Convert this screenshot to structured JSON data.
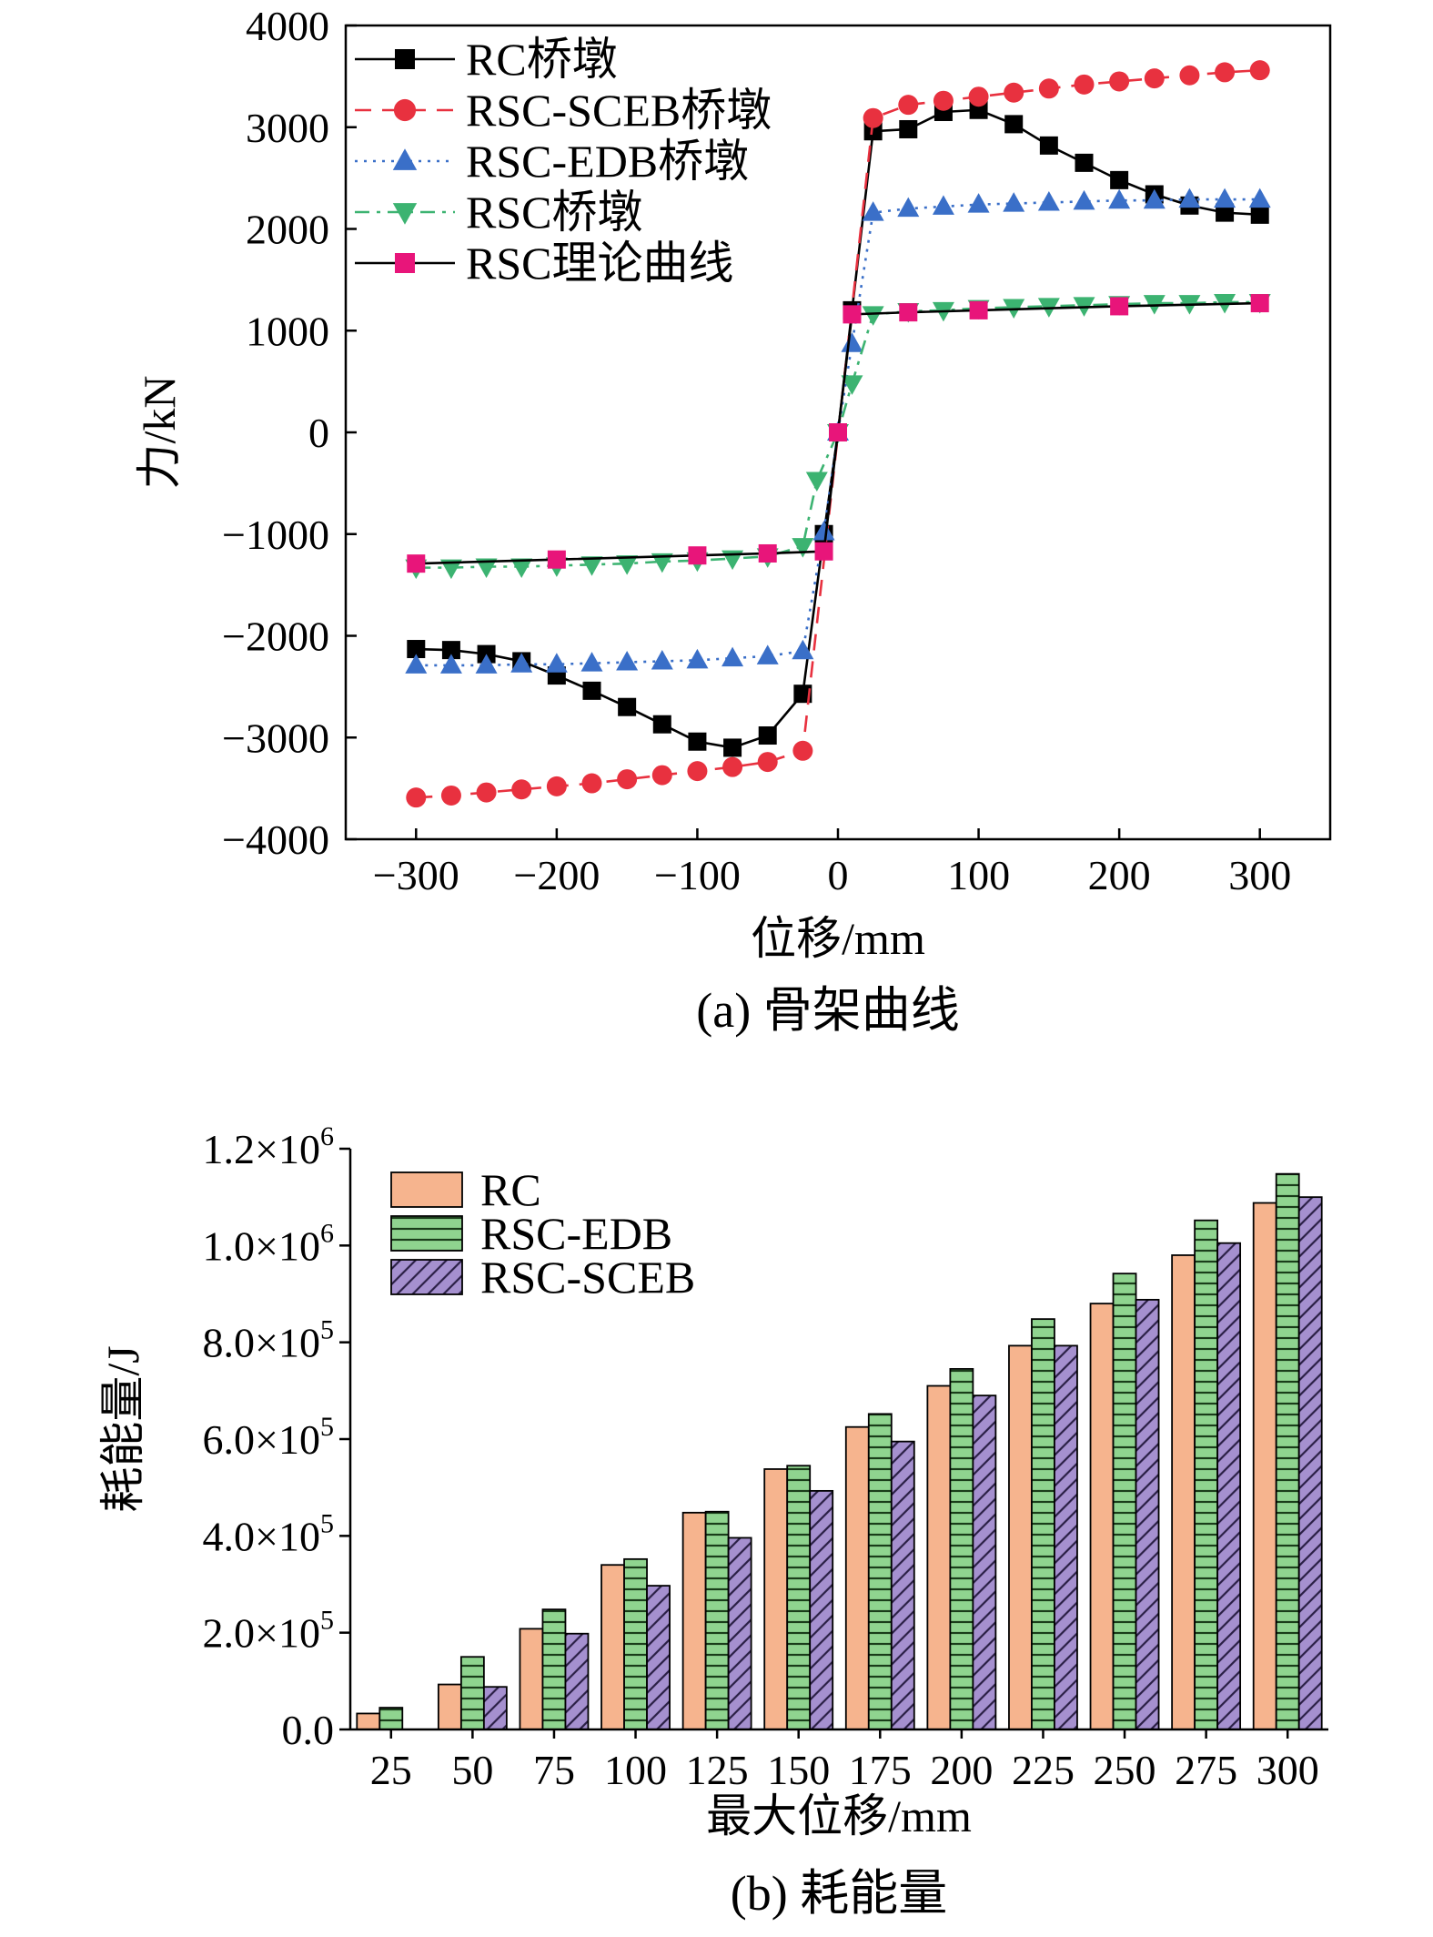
{
  "chart_data": [
    {
      "type": "line",
      "caption": "(a) 骨架曲线",
      "xlabel": "位移/mm",
      "ylabel": "力/kN",
      "xlim": [
        -350,
        350
      ],
      "ylim": [
        -4000,
        4000
      ],
      "xticks": [
        -300,
        -200,
        -100,
        0,
        100,
        200,
        300
      ],
      "xtick_labels": [
        "−300",
        "−200",
        "−100",
        "0",
        "100",
        "200",
        "300"
      ],
      "yticks": [
        -4000,
        -3000,
        -2000,
        -1000,
        0,
        1000,
        2000,
        3000,
        4000
      ],
      "ytick_labels": [
        "−4000",
        "−3000",
        "−2000",
        "−1000",
        "0",
        "1000",
        "2000",
        "3000",
        "4000"
      ],
      "grid": false,
      "legend": "top-left",
      "series": [
        {
          "name": "RC桥墩",
          "color": "#000000",
          "marker": "square",
          "line": "solid",
          "points": [
            [
              -300,
              -2130
            ],
            [
              -275,
              -2140
            ],
            [
              -250,
              -2180
            ],
            [
              -225,
              -2250
            ],
            [
              -200,
              -2390
            ],
            [
              -175,
              -2540
            ],
            [
              -150,
              -2700
            ],
            [
              -125,
              -2870
            ],
            [
              -100,
              -3040
            ],
            [
              -75,
              -3100
            ],
            [
              -50,
              -2980
            ],
            [
              -25,
              -2570
            ],
            [
              -10,
              -1000
            ],
            [
              0,
              0
            ],
            [
              10,
              1200
            ],
            [
              25,
              2960
            ],
            [
              50,
              2980
            ],
            [
              75,
              3150
            ],
            [
              100,
              3170
            ],
            [
              125,
              3030
            ],
            [
              150,
              2820
            ],
            [
              175,
              2650
            ],
            [
              200,
              2480
            ],
            [
              225,
              2340
            ],
            [
              250,
              2230
            ],
            [
              275,
              2160
            ],
            [
              300,
              2140
            ]
          ]
        },
        {
          "name": "RSC-SCEB桥墩",
          "color": "#e8313f",
          "marker": "circle",
          "line": "dashed",
          "points": [
            [
              -300,
              -3590
            ],
            [
              -275,
              -3570
            ],
            [
              -250,
              -3540
            ],
            [
              -225,
              -3510
            ],
            [
              -200,
              -3480
            ],
            [
              -175,
              -3450
            ],
            [
              -150,
              -3410
            ],
            [
              -125,
              -3370
            ],
            [
              -100,
              -3330
            ],
            [
              -75,
              -3290
            ],
            [
              -50,
              -3240
            ],
            [
              -25,
              -3130
            ],
            [
              25,
              3090
            ],
            [
              50,
              3220
            ],
            [
              75,
              3260
            ],
            [
              100,
              3300
            ],
            [
              125,
              3340
            ],
            [
              150,
              3380
            ],
            [
              175,
              3420
            ],
            [
              200,
              3450
            ],
            [
              225,
              3480
            ],
            [
              250,
              3510
            ],
            [
              275,
              3540
            ],
            [
              300,
              3560
            ]
          ]
        },
        {
          "name": "RSC-EDB桥墩",
          "color": "#3a6fc8",
          "marker": "triangle-up",
          "line": "dotted",
          "points": [
            [
              -300,
              -2290
            ],
            [
              -275,
              -2290
            ],
            [
              -250,
              -2290
            ],
            [
              -225,
              -2280
            ],
            [
              -200,
              -2280
            ],
            [
              -175,
              -2270
            ],
            [
              -150,
              -2260
            ],
            [
              -125,
              -2250
            ],
            [
              -100,
              -2240
            ],
            [
              -75,
              -2220
            ],
            [
              -50,
              -2200
            ],
            [
              -25,
              -2150
            ],
            [
              -10,
              -980
            ],
            [
              0,
              0
            ],
            [
              10,
              870
            ],
            [
              25,
              2160
            ],
            [
              50,
              2200
            ],
            [
              75,
              2220
            ],
            [
              100,
              2240
            ],
            [
              125,
              2250
            ],
            [
              150,
              2260
            ],
            [
              175,
              2270
            ],
            [
              200,
              2280
            ],
            [
              225,
              2280
            ],
            [
              250,
              2290
            ],
            [
              275,
              2290
            ],
            [
              300,
              2290
            ]
          ]
        },
        {
          "name": "RSC桥墩",
          "color": "#3cb371",
          "marker": "triangle-down",
          "line": "dashdot",
          "points": [
            [
              -300,
              -1330
            ],
            [
              -275,
              -1330
            ],
            [
              -250,
              -1320
            ],
            [
              -225,
              -1320
            ],
            [
              -200,
              -1310
            ],
            [
              -175,
              -1300
            ],
            [
              -150,
              -1290
            ],
            [
              -125,
              -1270
            ],
            [
              -100,
              -1260
            ],
            [
              -75,
              -1240
            ],
            [
              -50,
              -1220
            ],
            [
              -25,
              -1120
            ],
            [
              -15,
              -470
            ],
            [
              0,
              0
            ],
            [
              10,
              480
            ],
            [
              25,
              1160
            ],
            [
              50,
              1190
            ],
            [
              75,
              1200
            ],
            [
              100,
              1220
            ],
            [
              125,
              1230
            ],
            [
              150,
              1240
            ],
            [
              175,
              1250
            ],
            [
              200,
              1260
            ],
            [
              225,
              1270
            ],
            [
              250,
              1270
            ],
            [
              275,
              1280
            ],
            [
              300,
              1280
            ]
          ]
        },
        {
          "name": "RSC理论曲线",
          "color": "#e8157a",
          "marker": "square",
          "line": "solid",
          "line_color": "#000000",
          "points": [
            [
              -300,
              -1290
            ],
            [
              -200,
              -1250
            ],
            [
              -100,
              -1210
            ],
            [
              -50,
              -1190
            ],
            [
              -10,
              -1170
            ],
            [
              0,
              0
            ],
            [
              10,
              1160
            ],
            [
              50,
              1180
            ],
            [
              100,
              1200
            ],
            [
              200,
              1240
            ],
            [
              300,
              1270
            ]
          ]
        }
      ]
    },
    {
      "type": "bar",
      "caption": "(b) 耗能量",
      "xlabel": "最大位移/mm",
      "ylabel": "耗能量/J",
      "ylim": [
        0,
        1200000
      ],
      "ytick_labels": [
        {
          "mant": "0.0",
          "exp": ""
        },
        {
          "mant": "2.0×10",
          "exp": "5"
        },
        {
          "mant": "4.0×10",
          "exp": "5"
        },
        {
          "mant": "6.0×10",
          "exp": "5"
        },
        {
          "mant": "8.0×10",
          "exp": "5"
        },
        {
          "mant": "1.0×10",
          "exp": "6"
        },
        {
          "mant": "1.2×10",
          "exp": "6"
        }
      ],
      "categories": [
        "25",
        "50",
        "75",
        "100",
        "125",
        "150",
        "175",
        "200",
        "225",
        "250",
        "275",
        "300"
      ],
      "legend": "top-left",
      "series": [
        {
          "name": "RC",
          "color": "#f6b48e",
          "pattern": "solid",
          "values": [
            33000,
            93000,
            208000,
            340000,
            448000,
            538000,
            625000,
            710000,
            793000,
            880000,
            980000,
            1088000
          ]
        },
        {
          "name": "RSC-EDB",
          "color": "#8fd48f",
          "pattern": "horizontal",
          "values": [
            45000,
            150000,
            248000,
            352000,
            450000,
            545000,
            652000,
            745000,
            848000,
            942000,
            1052000,
            1148000
          ]
        },
        {
          "name": "RSC-SCEB",
          "color": "#a590cf",
          "pattern": "diagonal",
          "values": [
            0,
            88000,
            198000,
            297000,
            396000,
            493000,
            595000,
            690000,
            793000,
            888000,
            1005000,
            1100000
          ]
        }
      ]
    }
  ]
}
